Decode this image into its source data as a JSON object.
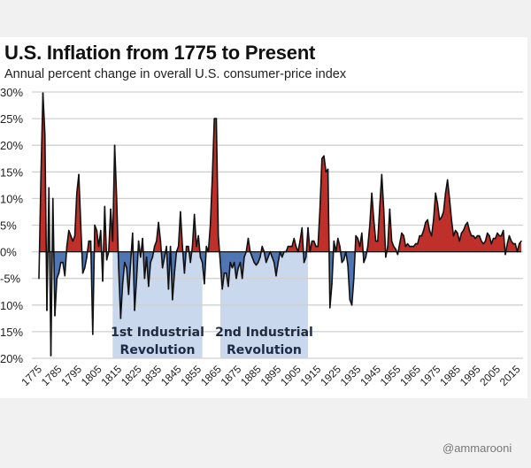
{
  "chart_data": {
    "type": "area",
    "title": "U.S. Inflation from 1775 to Present",
    "subtitle": "Annual percent change in overall U.S. consumer-price index",
    "xlabel": "",
    "ylabel": "",
    "ylim": [
      -20,
      30
    ],
    "xlim": [
      1775,
      2017
    ],
    "yticks": [
      30,
      25,
      20,
      15,
      10,
      5,
      0,
      -5,
      -10,
      -15,
      -20
    ],
    "ytick_labels": [
      "30%",
      "25%",
      "20%",
      "15%",
      "10%",
      "5%",
      "0%",
      "-5%",
      "10%",
      "15%",
      "20%"
    ],
    "xticks": [
      1775,
      1785,
      1795,
      1805,
      1815,
      1825,
      1835,
      1845,
      1855,
      1865,
      1875,
      1885,
      1895,
      1905,
      1915,
      1925,
      1935,
      1945,
      1955,
      1965,
      1975,
      1985,
      1995,
      2005,
      2015
    ],
    "grid": "horizontal",
    "colors": {
      "positive": "#c0302a",
      "negative": "#4f75b3",
      "line": "#111111",
      "shade": "#c9d8ec",
      "annotation": "#1f2a44"
    },
    "start_year": 1775,
    "values": [
      -5,
      14,
      29.8,
      22,
      -11,
      12,
      -19.5,
      10,
      -12,
      -5,
      -4,
      -2,
      -2,
      -4.5,
      1,
      4,
      3,
      2,
      3,
      11,
      14.5,
      5,
      -4,
      -3,
      -1,
      2,
      2,
      -15.5,
      5,
      4,
      1,
      4,
      -5.5,
      8.5,
      -1.5,
      0,
      8,
      2,
      20,
      10,
      -3,
      -12.5,
      -6,
      -2,
      -3,
      -8,
      -2,
      3.5,
      -11,
      -5,
      2,
      -1,
      2.5,
      -5,
      -1,
      -6.5,
      -2,
      -1,
      1,
      2,
      5.5,
      2,
      -3,
      -1,
      1,
      -7,
      1,
      -9,
      -4,
      0,
      1,
      7.5,
      1,
      -4,
      1,
      1,
      -2,
      1,
      7,
      1,
      3,
      -1,
      -2,
      -6,
      1,
      0,
      5,
      14,
      25,
      25,
      3,
      -2,
      -7,
      -4,
      -4,
      -6.5,
      -2,
      -3,
      -2,
      -5,
      -3,
      -2,
      -5,
      -1,
      0,
      2.5,
      0,
      -1,
      -2,
      -2.5,
      -2,
      -1,
      1,
      0,
      -2,
      -1,
      0,
      -1,
      -2,
      -4.5,
      -2,
      0,
      -1,
      0,
      0,
      1,
      1,
      1,
      2.5,
      1,
      0,
      2,
      4.5,
      -2,
      -1,
      4.5,
      0,
      2,
      2,
      1,
      1,
      8,
      17.5,
      18,
      15,
      15.5,
      -10.5,
      -6,
      2,
      0,
      2.5,
      1,
      -2,
      -1.5,
      0,
      -2.5,
      -9,
      -10,
      -5,
      3,
      2.5,
      1,
      3.5,
      -2,
      -1,
      1,
      5,
      11,
      6,
      2,
      2,
      8.5,
      14.5,
      8,
      -1,
      1,
      8,
      2,
      1,
      0.5,
      -0.5,
      1.5,
      3.5,
      3,
      1,
      1.5,
      1,
      1,
      1,
      1.5,
      1.5,
      3,
      3,
      4,
      5.5,
      6,
      4,
      3,
      6,
      11,
      9,
      6,
      6.5,
      7.5,
      11,
      13.5,
      10,
      6,
      3,
      4,
      3.5,
      2,
      3.5,
      4,
      5,
      5.5,
      4,
      3,
      3,
      2.5,
      3,
      3,
      2,
      1.5,
      2,
      3.5,
      3,
      1.5,
      2.5,
      2.5,
      3.5,
      3,
      3,
      4,
      -0.5,
      1.5,
      3,
      2,
      1.5,
      1.5,
      0,
      1.5,
      2
    ],
    "annotations": [
      {
        "label": [
          "1st Industrial",
          "Revolution"
        ],
        "from": 1812,
        "to": 1857
      },
      {
        "label": [
          "2nd Industrial",
          "Revolution"
        ],
        "from": 1866,
        "to": 1910
      }
    ]
  },
  "watermark": "@ammarooni"
}
